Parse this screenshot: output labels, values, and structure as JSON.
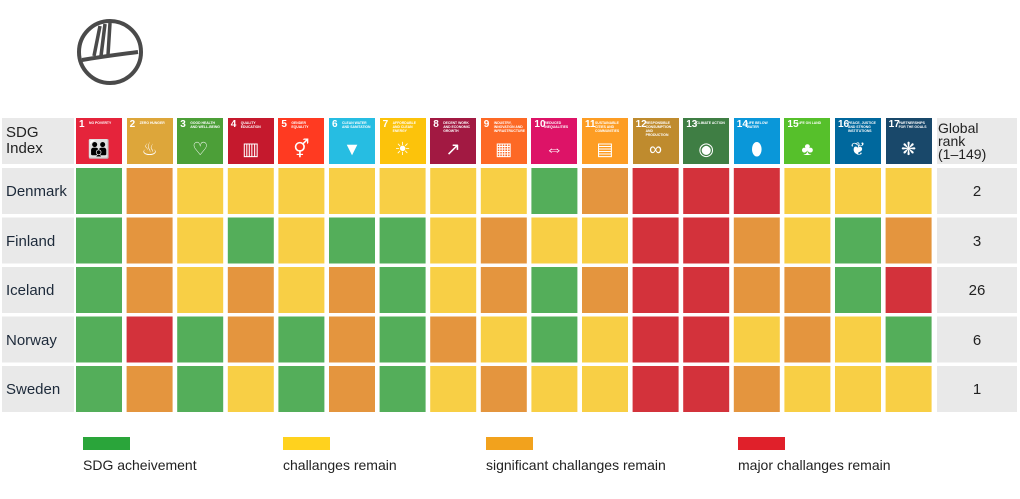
{
  "colors": {
    "achieved": "#54AE5A",
    "challenges": "#F8CF45",
    "significant": "#E4953E",
    "major": "#D3323B",
    "label_bg": "#E9E9E9",
    "legend_achieved": "#2AA53A",
    "legend_challenges": "#FFD21E",
    "legend_significant": "#F2A21D",
    "legend_major": "#E0202A"
  },
  "header": {
    "corner_line1": "SDG",
    "corner_line2": "Index",
    "rank_line1": "Global",
    "rank_line2": "rank",
    "rank_line3": "(1–149)"
  },
  "goals": [
    {
      "number": "1",
      "label": "NO POVERTY",
      "color": "#E5243B",
      "icon": "family-icon"
    },
    {
      "number": "2",
      "label": "ZERO HUNGER",
      "color": "#DDA63A",
      "icon": "bowl-icon"
    },
    {
      "number": "3",
      "label": "GOOD HEALTH AND WELL-BEING",
      "color": "#4C9F38",
      "icon": "heartbeat-icon"
    },
    {
      "number": "4",
      "label": "QUALITY EDUCATION",
      "color": "#C5192D",
      "icon": "book-icon"
    },
    {
      "number": "5",
      "label": "GENDER EQUALITY",
      "color": "#FF3A21",
      "icon": "gender-icon"
    },
    {
      "number": "6",
      "label": "CLEAN WATER AND SANITATION",
      "color": "#26BDE2",
      "icon": "water-drop-icon"
    },
    {
      "number": "7",
      "label": "AFFORDABLE AND CLEAN ENERGY",
      "color": "#FCC30B",
      "icon": "sun-icon"
    },
    {
      "number": "8",
      "label": "DECENT WORK AND ECONOMIC GROWTH",
      "color": "#A21942",
      "icon": "growth-chart-icon"
    },
    {
      "number": "9",
      "label": "INDUSTRY, INNOVATION AND INFRASTRUCTURE",
      "color": "#FD6925",
      "icon": "cubes-icon"
    },
    {
      "number": "10",
      "label": "REDUCED INEQUALITIES",
      "color": "#DD1367",
      "icon": "equality-icon"
    },
    {
      "number": "11",
      "label": "SUSTAINABLE CITIES AND COMMUNITIES",
      "color": "#FD9D24",
      "icon": "city-icon"
    },
    {
      "number": "12",
      "label": "RESPONSIBLE CONSUMPTION AND PRODUCTION",
      "color": "#BF8B2E",
      "icon": "infinity-icon"
    },
    {
      "number": "13",
      "label": "CLIMATE ACTION",
      "color": "#3F7E44",
      "icon": "eye-globe-icon"
    },
    {
      "number": "14",
      "label": "LIFE BELOW WATER",
      "color": "#0A97D9",
      "icon": "fish-icon"
    },
    {
      "number": "15",
      "label": "LIFE ON LAND",
      "color": "#56C02B",
      "icon": "tree-icon"
    },
    {
      "number": "16",
      "label": "PEACE, JUSTICE AND STRONG INSTITUTIONS",
      "color": "#00689D",
      "icon": "dove-icon"
    },
    {
      "number": "17",
      "label": "PARTNERSHIPS FOR THE GOALS",
      "color": "#19486A",
      "icon": "flower-icon"
    }
  ],
  "chart_data": {
    "type": "heatmap",
    "status_codes": {
      "0": "SDG acheivement",
      "1": "challanges remain",
      "2": "significant challanges remain",
      "3": "major challanges remain"
    },
    "columns": [
      "1",
      "2",
      "3",
      "4",
      "5",
      "6",
      "7",
      "8",
      "9",
      "10",
      "11",
      "12",
      "13",
      "14",
      "15",
      "16",
      "17"
    ],
    "rows": [
      {
        "country": "Denmark",
        "rank": "2",
        "values": [
          0,
          2,
          1,
          1,
          1,
          1,
          1,
          1,
          1,
          0,
          2,
          3,
          3,
          3,
          1,
          1,
          1
        ]
      },
      {
        "country": "Finland",
        "rank": "3",
        "values": [
          0,
          2,
          1,
          0,
          1,
          0,
          0,
          1,
          2,
          1,
          1,
          3,
          3,
          2,
          1,
          0,
          2
        ]
      },
      {
        "country": "Iceland",
        "rank": "26",
        "values": [
          0,
          2,
          1,
          2,
          1,
          2,
          0,
          1,
          2,
          0,
          2,
          3,
          3,
          2,
          2,
          0,
          3
        ]
      },
      {
        "country": "Norway",
        "rank": "6",
        "values": [
          0,
          3,
          0,
          2,
          0,
          2,
          0,
          2,
          1,
          0,
          1,
          3,
          3,
          1,
          2,
          1,
          0
        ]
      },
      {
        "country": "Sweden",
        "rank": "1",
        "values": [
          0,
          2,
          0,
          1,
          0,
          2,
          0,
          1,
          2,
          1,
          1,
          3,
          3,
          2,
          1,
          1,
          1
        ]
      }
    ]
  },
  "legend": [
    {
      "label": "SDG acheivement",
      "color_key": "legend_achieved"
    },
    {
      "label": "challanges remain",
      "color_key": "legend_challenges"
    },
    {
      "label": "significant challanges remain",
      "color_key": "legend_significant"
    },
    {
      "label": "major challanges remain",
      "color_key": "legend_major"
    }
  ]
}
